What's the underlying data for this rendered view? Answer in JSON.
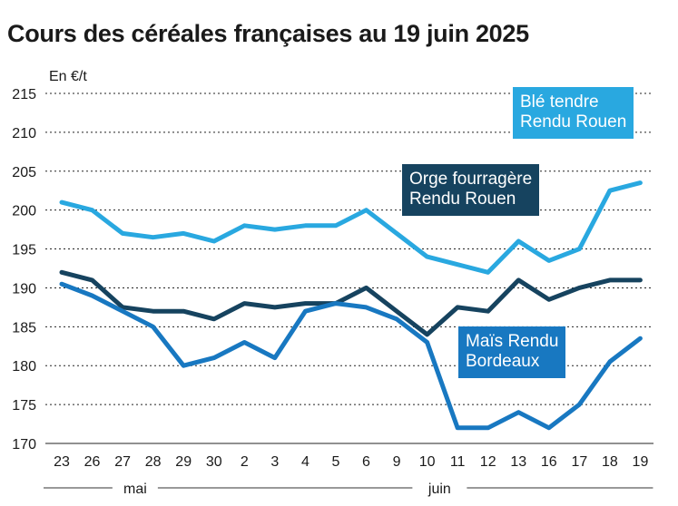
{
  "chart_data": {
    "type": "line",
    "title": "Cours des céréales françaises au 19 juin 2025",
    "ylabel": "En €/t",
    "ylim": [
      170,
      215
    ],
    "yticks": [
      170,
      175,
      180,
      185,
      190,
      195,
      200,
      205,
      210,
      215
    ],
    "categories": [
      "23",
      "26",
      "27",
      "28",
      "29",
      "30",
      "2",
      "3",
      "4",
      "5",
      "6",
      "9",
      "10",
      "11",
      "12",
      "13",
      "16",
      "17",
      "18",
      "19"
    ],
    "month_groups": [
      {
        "label": "mai",
        "start": 0,
        "end": 5
      },
      {
        "label": "juin",
        "start": 6,
        "end": 19
      }
    ],
    "grid": "horizontal",
    "series": [
      {
        "name": "Blé tendre\nRendu Rouen",
        "color": "#29a8e0",
        "values": [
          201,
          200,
          197,
          196.5,
          197,
          196,
          198,
          197.5,
          198,
          198,
          200,
          197,
          194,
          193,
          192,
          196,
          193.5,
          195,
          202.5,
          203.5
        ]
      },
      {
        "name": "Orge fourragère\nRendu Rouen",
        "color": "#16435f",
        "values": [
          192,
          191,
          187.5,
          187,
          187,
          186,
          188,
          187.5,
          188,
          188,
          190,
          187,
          184,
          187.5,
          187,
          191,
          188.5,
          190,
          191,
          191
        ]
      },
      {
        "name": "Maïs Rendu\nBordeaux",
        "color": "#1878c1",
        "values": [
          190.5,
          189,
          187,
          185,
          180,
          181,
          183,
          181,
          187,
          188,
          187.5,
          186,
          183,
          172,
          172,
          174,
          172,
          175,
          180.5,
          183.5
        ]
      }
    ]
  }
}
